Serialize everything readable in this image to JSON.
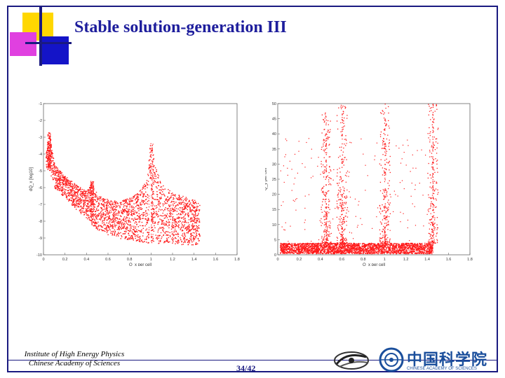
{
  "slide": {
    "title": "Stable solution-generation III",
    "page_number": "34/42",
    "institute_line1": "Institute of High Energy Physics",
    "institute_line2": "Chinese Academy of Sciences",
    "cas_logo_text": "中国科学院",
    "cas_logo_subtext": "CHINESE ACADEMY OF SCIENCES"
  },
  "colors": {
    "frame": "#1a1a80",
    "title": "#1d1d9c",
    "points": "#ff1a1a",
    "deco_yellow": "#ffd700",
    "deco_magenta": "#e040e0",
    "deco_blue": "#1414c8"
  },
  "chart_data": [
    {
      "type": "scatter",
      "x_range": [
        0,
        1.8
      ],
      "y_range": [
        -10,
        -1
      ],
      "x_ticks": [
        "0",
        "0.2",
        "0.4",
        "0.6",
        "0.8",
        "1",
        "1.2",
        "1.4",
        "1.6",
        "1.8"
      ],
      "y_ticks": [
        "-1",
        "-2",
        "-3",
        "-4",
        "-5",
        "-6",
        "-7",
        "-8",
        "-9",
        "-10"
      ],
      "xlabel": "Q_x per cell",
      "ylabel": "dQ_x [log10]",
      "series_color": "#ff1a1a",
      "envelope": {
        "x": [
          0.02,
          0.05,
          0.1,
          0.2,
          0.3,
          0.4,
          0.45,
          0.5,
          0.6,
          0.7,
          0.8,
          0.9,
          0.95,
          1.0,
          1.05,
          1.1,
          1.2,
          1.3,
          1.4,
          1.45
        ],
        "upper": [
          -3.6,
          -2.7,
          -4.6,
          -5.3,
          -5.8,
          -6.2,
          -5.6,
          -6.4,
          -6.7,
          -6.8,
          -6.6,
          -6.1,
          -5.6,
          -3.3,
          -5.0,
          -5.8,
          -6.3,
          -6.5,
          -6.7,
          -6.9
        ],
        "lower": [
          -4.8,
          -4.9,
          -6.0,
          -6.6,
          -7.3,
          -7.8,
          -8.2,
          -8.5,
          -8.8,
          -9.0,
          -9.1,
          -9.2,
          -9.3,
          -9.3,
          -9.3,
          -9.3,
          -9.4,
          -9.4,
          -9.4,
          -9.3
        ]
      },
      "peaks_x": [
        0.05,
        0.45,
        1.0
      ]
    },
    {
      "type": "scatter",
      "x_range": [
        0,
        1.8
      ],
      "y_range": [
        0,
        50
      ],
      "x_ticks": [
        "0",
        "0.2",
        "0.4",
        "0.6",
        "0.8",
        "1",
        "1.2",
        "1.4",
        "1.6",
        "1.8"
      ],
      "y_ticks": [
        "0",
        "5",
        "10",
        "15",
        "20",
        "25",
        "30",
        "35",
        "40",
        "45",
        "50"
      ],
      "xlabel": "Q_x per cell",
      "ylabel": "Q_y per cell",
      "series_color": "#ff1a1a",
      "baseline_band": [
        0.5,
        4
      ],
      "peaks": [
        {
          "x": 0.45,
          "height": 48
        },
        {
          "x": 0.6,
          "height": 50
        },
        {
          "x": 1.0,
          "height": 50
        },
        {
          "x": 1.45,
          "height": 50
        }
      ]
    }
  ]
}
